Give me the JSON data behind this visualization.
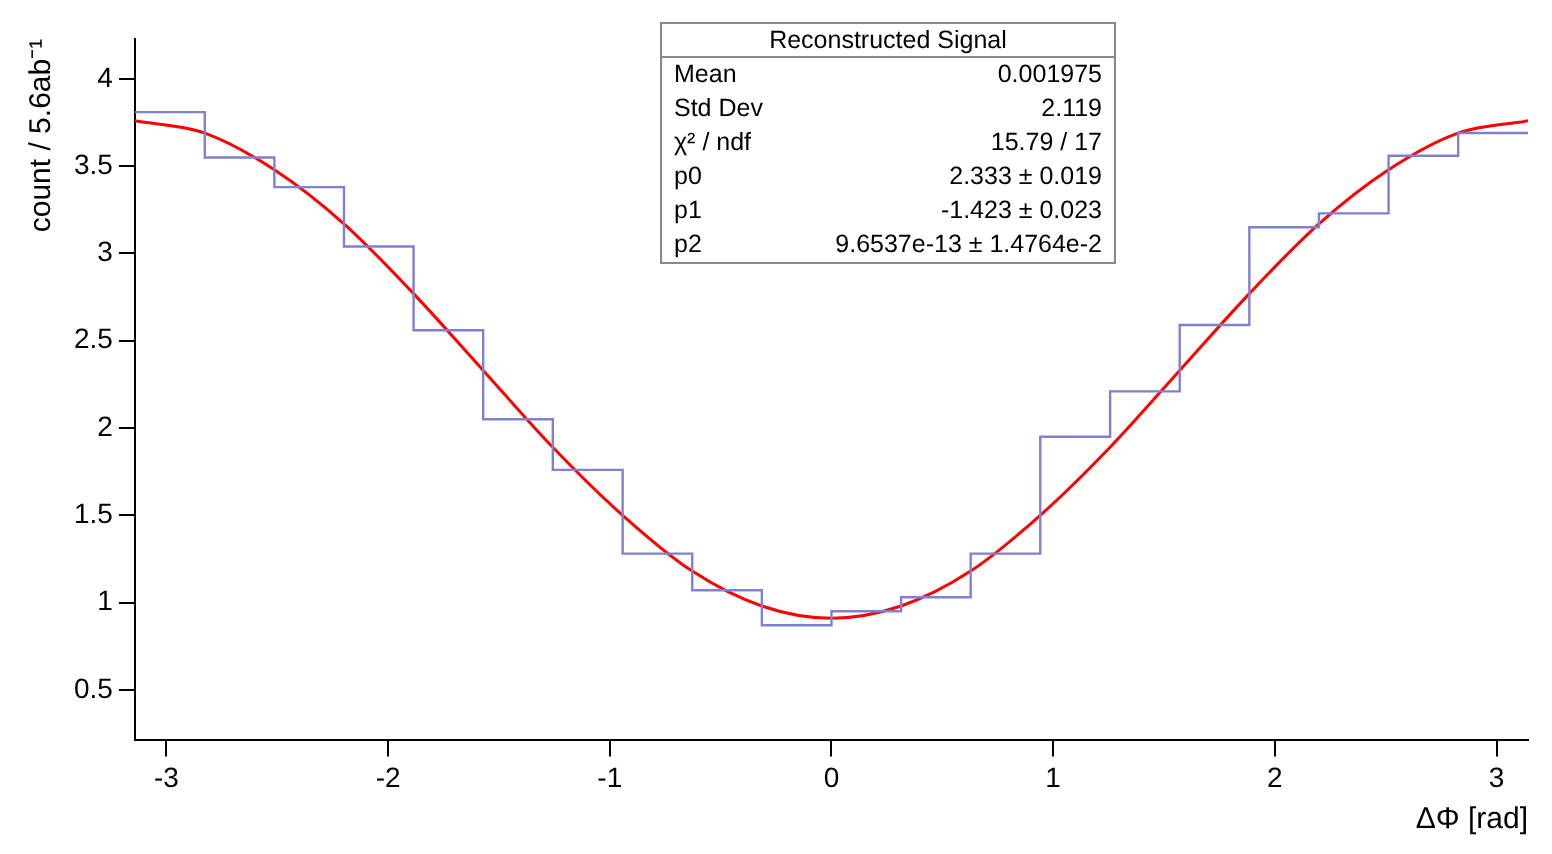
{
  "chart_data": {
    "type": "histogram",
    "ylabel": "count / 5.6ab⁻¹",
    "xlabel": "ΔΦ [rad]",
    "xlim": [
      -3.142,
      3.142
    ],
    "xticks": [
      -3,
      -2,
      -1,
      0,
      1,
      2,
      3
    ],
    "ylim": [
      0.21,
      4.23
    ],
    "yticks": [
      0.5,
      1,
      1.5,
      2,
      2.5,
      3,
      3.5,
      4
    ],
    "grid": false,
    "legend": false,
    "color": "#8080d0",
    "bins": [
      -3.142,
      -2.827,
      -2.513,
      -2.199,
      -1.885,
      -1.571,
      -1.257,
      -0.942,
      -0.628,
      -0.314,
      0,
      0.314,
      0.628,
      0.942,
      1.257,
      1.571,
      1.885,
      2.199,
      2.513,
      2.827,
      3.142
    ],
    "values": [
      3.81,
      3.55,
      3.38,
      3.04,
      2.56,
      2.05,
      1.76,
      1.28,
      1.07,
      0.87,
      0.95,
      1.03,
      1.28,
      1.95,
      2.21,
      2.59,
      3.15,
      3.23,
      3.56,
      3.69
    ],
    "series": [
      {
        "type": "line",
        "color": "#ff0000",
        "x": [
          -3.142,
          -2.827,
          -2.513,
          -2.199,
          -1.885,
          -1.571,
          -1.257,
          -0.942,
          -0.628,
          -0.314,
          0,
          0.314,
          0.628,
          0.942,
          1.257,
          1.571,
          1.885,
          2.199,
          2.513,
          2.827,
          3.142
        ],
        "values": [
          3.76,
          3.69,
          3.48,
          3.17,
          2.77,
          2.33,
          1.89,
          1.5,
          1.18,
          0.98,
          0.91,
          0.98,
          1.18,
          1.5,
          1.89,
          2.33,
          2.77,
          3.17,
          3.48,
          3.69,
          3.76
        ]
      }
    ],
    "annotations": [
      "Reconstructed Signal",
      "Mean",
      "0.001975",
      "Std Dev",
      "2.119",
      "χ² / ndf",
      "15.79 / 17",
      "p0",
      "2.333 ± 0.019",
      "p1",
      "-1.423 ± 0.023",
      "p2",
      "9.6537e-13 ± 1.4764e-2"
    ]
  }
}
